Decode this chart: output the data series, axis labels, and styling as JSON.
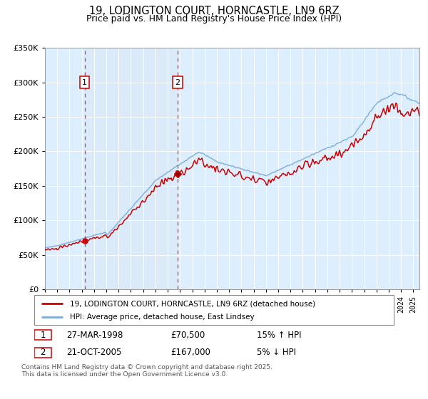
{
  "title": "19, LODINGTON COURT, HORNCASTLE, LN9 6RZ",
  "subtitle": "Price paid vs. HM Land Registry's House Price Index (HPI)",
  "title_fontsize": 10.5,
  "subtitle_fontsize": 9,
  "background_color": "#ffffff",
  "plot_bg_color": "#ddeeff",
  "grid_color": "#ffffff",
  "legend_label_red": "19, LODINGTON COURT, HORNCASTLE, LN9 6RZ (detached house)",
  "legend_label_blue": "HPI: Average price, detached house, East Lindsey",
  "red_color": "#cc0000",
  "blue_color": "#7aacdd",
  "shade_color": "#c8dff5",
  "sale1_date": 1998.23,
  "sale1_price": 70500,
  "sale1_hpi_pct": "15% ↑ HPI",
  "sale1_date_str": "27-MAR-1998",
  "sale2_date": 2005.81,
  "sale2_price": 167000,
  "sale2_hpi_pct": "5% ↓ HPI",
  "sale2_date_str": "21-OCT-2005",
  "footnote": "Contains HM Land Registry data © Crown copyright and database right 2025.\nThis data is licensed under the Open Government Licence v3.0.",
  "ylim": [
    0,
    350000
  ],
  "yticks": [
    0,
    50000,
    100000,
    150000,
    200000,
    250000,
    300000,
    350000
  ],
  "xlim_start": 1995.0,
  "xlim_end": 2025.5
}
